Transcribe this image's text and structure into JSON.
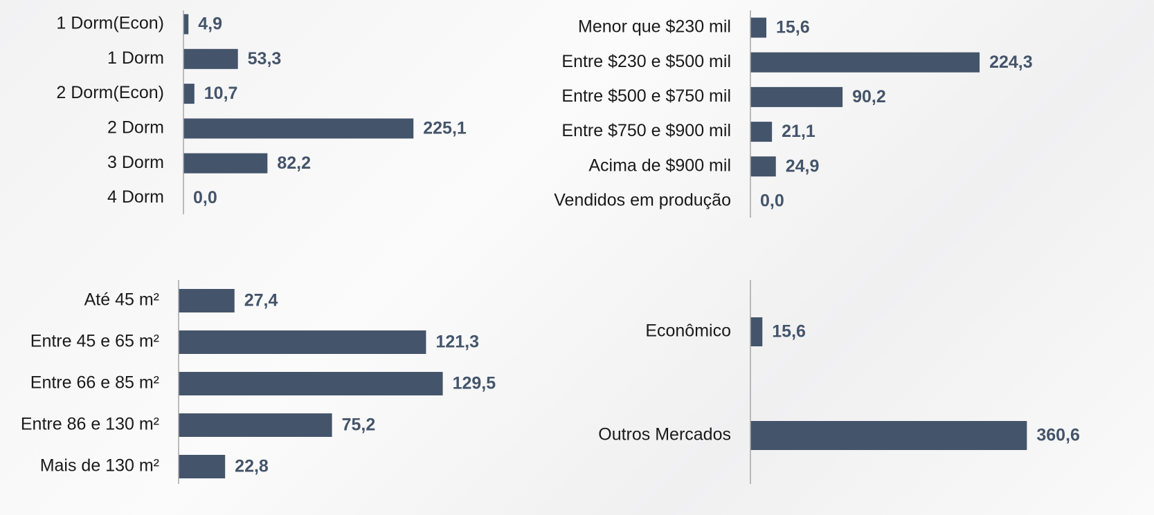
{
  "chart_data": [
    {
      "type": "bar",
      "orientation": "horizontal",
      "color": "#44546a",
      "xlim": [
        0,
        250
      ],
      "categories": [
        "1 Dorm(Econ)",
        "1 Dorm",
        "2 Dorm(Econ)",
        "2 Dorm",
        "3 Dorm",
        "4 Dorm"
      ],
      "values": [
        4.9,
        53.3,
        10.7,
        225.1,
        82.2,
        0.0
      ],
      "value_labels": [
        "4,9",
        "53,3",
        "10,7",
        "225,1",
        "82,2",
        "0,0"
      ]
    },
    {
      "type": "bar",
      "orientation": "horizontal",
      "color": "#44546a",
      "xlim": [
        0,
        250
      ],
      "categories": [
        "Menor que $230 mil",
        "Entre $230 e $500 mil",
        "Entre $500 e $750 mil",
        "Entre $750 e $900 mil",
        "Acima de $900 mil",
        "Vendidos em produção"
      ],
      "values": [
        15.6,
        224.3,
        90.2,
        21.1,
        24.9,
        0.0
      ],
      "value_labels": [
        "15,6",
        "224,3",
        "90,2",
        "21,1",
        "24,9",
        "0,0"
      ]
    },
    {
      "type": "bar",
      "orientation": "horizontal",
      "color": "#44546a",
      "xlim": [
        0,
        150
      ],
      "categories": [
        "Até 45 m²",
        "Entre 45 e 65 m²",
        "Entre 66 e 85 m²",
        "Entre 86 e 130 m²",
        "Mais de 130 m²"
      ],
      "values": [
        27.4,
        121.3,
        129.5,
        75.2,
        22.8
      ],
      "value_labels": [
        "27,4",
        "121,3",
        "129,5",
        "75,2",
        "22,8"
      ]
    },
    {
      "type": "bar",
      "orientation": "horizontal",
      "color": "#44546a",
      "xlim": [
        0,
        400
      ],
      "categories": [
        "Econômico",
        "Outros Mercados"
      ],
      "values": [
        15.6,
        360.6
      ],
      "value_labels": [
        "15,6",
        "360,6"
      ]
    }
  ]
}
